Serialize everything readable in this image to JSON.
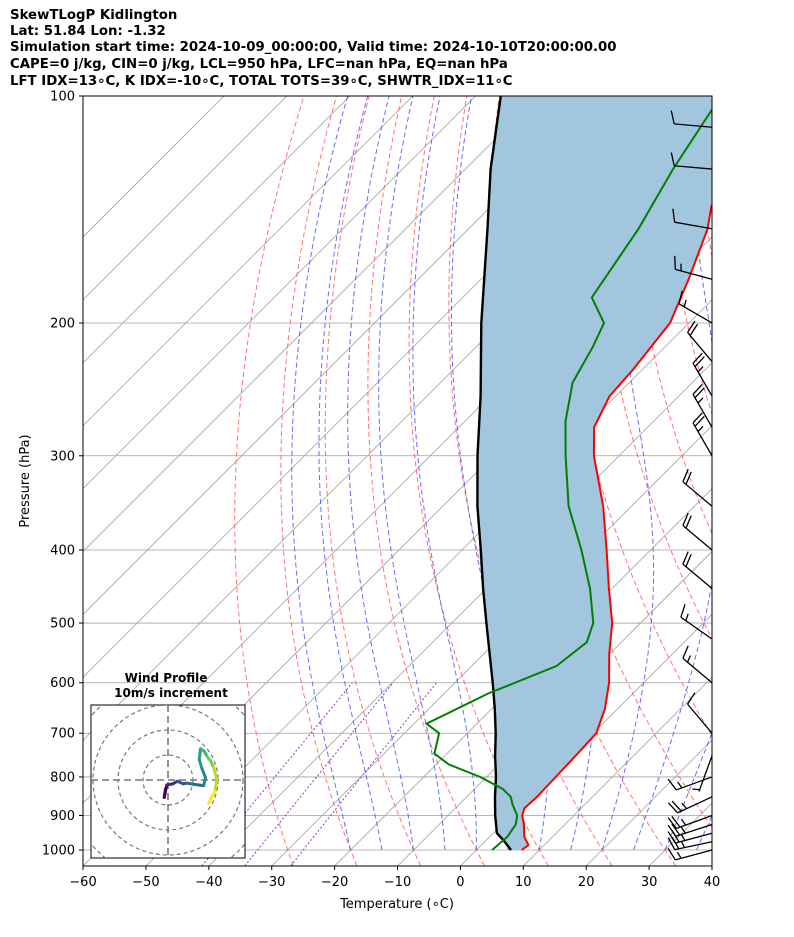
{
  "header": {
    "line1": "SkewTLogP Kidlington",
    "line2": "Lat: 51.84   Lon: -1.32",
    "line3": "Simulation start time: 2024-10-09_00:00:00, Valid time: 2024-10-10T20:00:00.00",
    "line4": "CAPE=0 j/kg, CIN=0 j/kg, LCL=950 hPa, LFC=nan hPa, EQ=nan hPa",
    "line5": "LFT IDX=13∘C, K IDX=-10∘C, TOTAL TOTS=39∘C, SHWTR_IDX=11∘C"
  },
  "colors": {
    "temperature": "#ff0000",
    "dewpoint": "#008000",
    "parcel": "#000000",
    "cape_fill": "#a3c6df",
    "dry_adiabat": "#ff5a5a",
    "moist_adiabat": "#4a55ff",
    "isotherm": "#a0a0a0",
    "mixing_ratio": "#9932cc"
  },
  "chart_data": {
    "type": "skewt",
    "xlabel": "Temperature (∘C)",
    "ylabel": "Pressure (hPa)",
    "xlim": [
      -60,
      40
    ],
    "ylim": [
      1050,
      100
    ],
    "x_ticks": [
      "−60",
      "−50",
      "−40",
      "−30",
      "−20",
      "−10",
      "0",
      "10",
      "20",
      "30",
      "40"
    ],
    "y_ticks": [
      "100",
      "200",
      "300",
      "400",
      "500",
      "600",
      "700",
      "800",
      "900",
      "1000"
    ],
    "grid": true,
    "temperature_profile": [
      [
        1000,
        7.2
      ],
      [
        985,
        7.5
      ],
      [
        960,
        5.5
      ],
      [
        925,
        3.5
      ],
      [
        900,
        1.8
      ],
      [
        880,
        1.0
      ],
      [
        850,
        1.2
      ],
      [
        800,
        1.0
      ],
      [
        750,
        0.8
      ],
      [
        700,
        0.5
      ],
      [
        650,
        -2.0
      ],
      [
        600,
        -5.5
      ],
      [
        550,
        -10.0
      ],
      [
        500,
        -14.5
      ],
      [
        450,
        -20.5
      ],
      [
        400,
        -27.0
      ],
      [
        350,
        -34.5
      ],
      [
        300,
        -44.0
      ],
      [
        275,
        -48.5
      ],
      [
        250,
        -51.0
      ],
      [
        230,
        -51.5
      ],
      [
        200,
        -53.0
      ],
      [
        175,
        -57.0
      ],
      [
        150,
        -62.0
      ],
      [
        140,
        -65.0
      ],
      [
        125,
        -67.0
      ],
      [
        110,
        -70.5
      ],
      [
        100,
        -74.0
      ]
    ],
    "dewpoint_profile": [
      [
        1000,
        2.5
      ],
      [
        960,
        2.8
      ],
      [
        925,
        2.2
      ],
      [
        900,
        1.0
      ],
      [
        870,
        -1.5
      ],
      [
        850,
        -3.0
      ],
      [
        830,
        -5.5
      ],
      [
        800,
        -11.0
      ],
      [
        770,
        -18.0
      ],
      [
        745,
        -22.0
      ],
      [
        700,
        -24.5
      ],
      [
        680,
        -28.0
      ],
      [
        620,
        -23.0
      ],
      [
        570,
        -16.5
      ],
      [
        530,
        -15.5
      ],
      [
        500,
        -17.5
      ],
      [
        450,
        -23.5
      ],
      [
        400,
        -31.0
      ],
      [
        350,
        -40.0
      ],
      [
        300,
        -48.5
      ],
      [
        270,
        -54.0
      ],
      [
        240,
        -59.0
      ],
      [
        215,
        -61.5
      ],
      [
        200,
        -63.5
      ],
      [
        185,
        -69.5
      ],
      [
        150,
        -73.0
      ],
      [
        125,
        -77.0
      ],
      [
        100,
        -81.0
      ]
    ],
    "parcel_profile": [
      [
        1000,
        5.5
      ],
      [
        970,
        2.7
      ],
      [
        950,
        0.6
      ],
      [
        900,
        -2.5
      ],
      [
        850,
        -5.5
      ],
      [
        800,
        -8.5
      ],
      [
        750,
        -12.0
      ],
      [
        700,
        -15.5
      ],
      [
        650,
        -19.5
      ],
      [
        600,
        -24.0
      ],
      [
        550,
        -29.0
      ],
      [
        500,
        -34.5
      ],
      [
        450,
        -40.5
      ],
      [
        400,
        -47.0
      ],
      [
        350,
        -54.5
      ],
      [
        300,
        -62.5
      ],
      [
        250,
        -71.5
      ],
      [
        200,
        -83.0
      ],
      [
        150,
        -97.0
      ],
      [
        125,
        -106.0
      ],
      [
        100,
        -116.0
      ]
    ],
    "wind_barbs": [
      {
        "p": 1000,
        "speed_kt": 15,
        "dir_deg": 255
      },
      {
        "p": 975,
        "speed_kt": 25,
        "dir_deg": 258
      },
      {
        "p": 950,
        "speed_kt": 25,
        "dir_deg": 255
      },
      {
        "p": 925,
        "speed_kt": 25,
        "dir_deg": 252
      },
      {
        "p": 900,
        "speed_kt": 25,
        "dir_deg": 250
      },
      {
        "p": 850,
        "speed_kt": 25,
        "dir_deg": 245
      },
      {
        "p": 800,
        "speed_kt": 15,
        "dir_deg": 250
      },
      {
        "p": 750,
        "speed_kt": 5,
        "dir_deg": 200
      },
      {
        "p": 700,
        "speed_kt": 10,
        "dir_deg": 320
      },
      {
        "p": 600,
        "speed_kt": 15,
        "dir_deg": 310
      },
      {
        "p": 525,
        "speed_kt": 15,
        "dir_deg": 305
      },
      {
        "p": 450,
        "speed_kt": 20,
        "dir_deg": 310
      },
      {
        "p": 400,
        "speed_kt": 20,
        "dir_deg": 310
      },
      {
        "p": 350,
        "speed_kt": 20,
        "dir_deg": 310
      },
      {
        "p": 300,
        "speed_kt": 25,
        "dir_deg": 330
      },
      {
        "p": 275,
        "speed_kt": 25,
        "dir_deg": 330
      },
      {
        "p": 250,
        "speed_kt": 25,
        "dir_deg": 330
      },
      {
        "p": 225,
        "speed_kt": 20,
        "dir_deg": 320
      },
      {
        "p": 200,
        "speed_kt": 15,
        "dir_deg": 300
      },
      {
        "p": 175,
        "speed_kt": 15,
        "dir_deg": 285
      },
      {
        "p": 150,
        "speed_kt": 10,
        "dir_deg": 280
      },
      {
        "p": 125,
        "speed_kt": 10,
        "dir_deg": 275
      },
      {
        "p": 110,
        "speed_kt": 10,
        "dir_deg": 275
      }
    ],
    "hodograph": {
      "title": "Wind Profile",
      "subtitle": "10m/s increment",
      "u": [
        -0.4,
        -0.6,
        -0.2,
        0.8,
        1.5,
        2.4,
        3.0,
        4.2,
        5.7,
        6.0,
        5.4,
        5.0,
        5.2,
        5.8,
        6.3,
        6.8,
        7.3,
        7.8,
        7.5,
        6.5
      ],
      "v": [
        1.4,
        2.8,
        0.8,
        0.6,
        0.2,
        0.6,
        0.5,
        0.7,
        0.9,
        -0.4,
        -1.9,
        -3.3,
        -5.0,
        -4.6,
        -3.7,
        -3.1,
        -2.0,
        0.0,
        1.8,
        3.7
      ]
    }
  }
}
